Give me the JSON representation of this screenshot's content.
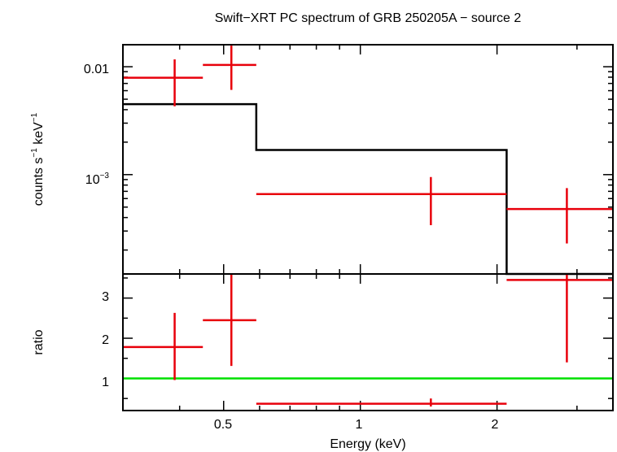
{
  "chart_data": [
    {
      "type": "scatter",
      "panel": "spectrum",
      "title": "Swift−XRT PC spectrum of GRB 250205A − source 2",
      "ylabel_parts": {
        "a": "counts s",
        "b": "−1",
        "c": " keV",
        "d": "−1"
      },
      "x_scale": "log",
      "y_scale": "log",
      "xlim": [
        0.3,
        3.6
      ],
      "ylim": [
        0.00012,
        0.016
      ],
      "ytick_labels": [
        {
          "value": 0.01,
          "label": "0.01"
        },
        {
          "value": 0.001,
          "label_base": "10",
          "label_exp": "−3"
        }
      ],
      "series": [
        {
          "type": "errorbar",
          "color": "#e8000b",
          "points": [
            {
              "x": 0.39,
              "xlo": 0.3,
              "xhi": 0.45,
              "y": 0.0079,
              "ylo": 0.0043,
              "yhi": 0.0117
            },
            {
              "x": 0.52,
              "xlo": 0.45,
              "xhi": 0.59,
              "y": 0.0104,
              "ylo": 0.0061,
              "yhi": 0.0157
            },
            {
              "x": 1.43,
              "xlo": 0.59,
              "xhi": 2.1,
              "y": 0.00066,
              "ylo": 0.00034,
              "yhi": 0.00095
            },
            {
              "x": 2.85,
              "xlo": 2.1,
              "xhi": 3.6,
              "y": 0.00048,
              "ylo": 0.00023,
              "yhi": 0.00075
            }
          ]
        },
        {
          "type": "step",
          "color": "#000000",
          "segments": [
            {
              "xlo": 0.3,
              "xhi": 0.59,
              "y": 0.0045
            },
            {
              "xlo": 0.59,
              "xhi": 2.1,
              "y": 0.00169
            },
            {
              "xlo": 2.1,
              "xhi": 3.6,
              "y": 5.5e-05
            }
          ]
        }
      ]
    },
    {
      "type": "scatter",
      "panel": "ratio",
      "ylabel": "ratio",
      "xlabel": "Energy (keV)",
      "x_scale": "log",
      "xlim": [
        0.3,
        3.6
      ],
      "ylim": [
        0.2,
        3.6
      ],
      "xtick_labels": [
        {
          "value": 0.5,
          "label": "0.5"
        },
        {
          "value": 1,
          "label": "1"
        },
        {
          "value": 2,
          "label": "2"
        }
      ],
      "ytick_labels": [
        {
          "value": 1,
          "label": "1"
        },
        {
          "value": 2,
          "label": "2"
        },
        {
          "value": 3,
          "label": "3"
        }
      ],
      "reference_line": {
        "y": 1,
        "color": "#00e000"
      },
      "series": [
        {
          "type": "errorbar",
          "color": "#e8000b",
          "points": [
            {
              "x": 0.39,
              "xlo": 0.3,
              "xhi": 0.45,
              "y": 1.78,
              "ylo": 0.96,
              "yhi": 2.63
            },
            {
              "x": 0.52,
              "xlo": 0.45,
              "xhi": 0.59,
              "y": 2.45,
              "ylo": 1.31,
              "yhi": 3.6
            },
            {
              "x": 1.43,
              "xlo": 0.59,
              "xhi": 2.1,
              "y": 0.37,
              "ylo": 0.3,
              "yhi": 0.5
            },
            {
              "x": 2.85,
              "xlo": 2.1,
              "xhi": 3.6,
              "y": 3.45,
              "ylo": 1.4,
              "yhi": 3.6
            }
          ]
        }
      ]
    }
  ]
}
